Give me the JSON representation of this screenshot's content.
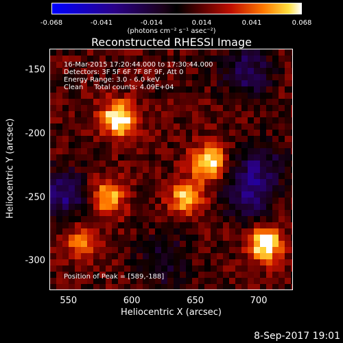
{
  "colorbar": {
    "tick_labels": [
      "-0.068",
      "-0.041",
      "-0.014",
      "0.014",
      "0.041",
      "0.068"
    ],
    "units": "(photons cm⁻² s⁻¹ asec⁻²)",
    "range": [
      -0.068,
      0.068
    ]
  },
  "chart_data": {
    "type": "heatmap",
    "title": "Reconstructed RHESSI Image",
    "xlabel": "Heliocentric X (arcsec)",
    "ylabel": "Heliocentric Y (arcsec)",
    "xlim": [
      535,
      727
    ],
    "ylim": [
      -323,
      -133
    ],
    "x_ticks": [
      "550",
      "600",
      "650",
      "700"
    ],
    "y_ticks": [
      "-150",
      "-200",
      "-250",
      "-300"
    ],
    "info_lines": [
      "16-Mar-2015 17:20:44.000 to 17:30:44.000",
      "Detectors: 3F 5F 6F 7F 8F 9F, Att 0",
      "Energy Range: 3.0 - 6.0 keV",
      "Clean     Total counts: 4.09E+04"
    ],
    "peak_label": "Position of Peak = [589,-188]",
    "sources": [
      {
        "x": 589,
        "y": -188,
        "value": 0.068
      },
      {
        "x": 660,
        "y": -222,
        "value": 0.058
      },
      {
        "x": 643,
        "y": -250,
        "value": 0.05
      },
      {
        "x": 580,
        "y": -249,
        "value": 0.047
      },
      {
        "x": 705,
        "y": -287,
        "value": 0.062
      },
      {
        "x": 560,
        "y": -283,
        "value": 0.035
      }
    ],
    "negative_regions": [
      {
        "x": 545,
        "y": -248,
        "value": -0.04
      },
      {
        "x": 690,
        "y": -150,
        "value": -0.035
      },
      {
        "x": 700,
        "y": -225,
        "value": -0.03
      },
      {
        "x": 690,
        "y": -248,
        "value": -0.032
      },
      {
        "x": 625,
        "y": -300,
        "value": -0.025
      }
    ]
  },
  "footer": {
    "date": "8-Sep-2017 19:01"
  }
}
